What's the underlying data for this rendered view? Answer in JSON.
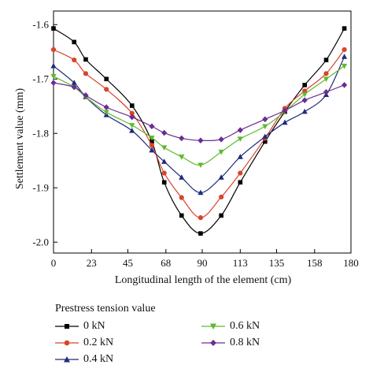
{
  "chart_data": {
    "type": "line",
    "xlabel": "Longitudinal length of the element (cm)",
    "ylabel": "Settlement value (mm)",
    "xlim": [
      0,
      180
    ],
    "ylim": [
      -2.02,
      -1.575
    ],
    "xticks": [
      0,
      23,
      45,
      68,
      90,
      113,
      135,
      158,
      180
    ],
    "xtick_labels": [
      "0",
      "23",
      "45",
      "68",
      "90",
      "113",
      "135",
      "158",
      "180"
    ],
    "yticks": [
      -1.6,
      -1.7,
      -1.8,
      -1.9,
      -2.0
    ],
    "ytick_labels": [
      "-1.6",
      "-1.7",
      "-1.8",
      "-1.9",
      "-2.0"
    ],
    "grid": false,
    "legend_title": "Prestress tension value",
    "legend_position": "bottom",
    "x": [
      0,
      12.5,
      19.5,
      32,
      47.5,
      59.5,
      67,
      77.5,
      89,
      101.5,
      113,
      128,
      140,
      152,
      165,
      176
    ],
    "series": [
      {
        "name": "0 kN",
        "color": "#000000",
        "marker": "square",
        "values": [
          -1.607,
          -1.632,
          -1.664,
          -1.7,
          -1.749,
          -1.815,
          -1.89,
          -1.951,
          -1.984,
          -1.951,
          -1.89,
          -1.815,
          -1.76,
          -1.711,
          -1.665,
          -1.607
        ]
      },
      {
        "name": "0.2 kN",
        "color": "#d6452c",
        "marker": "circle",
        "values": [
          -1.646,
          -1.665,
          -1.69,
          -1.719,
          -1.763,
          -1.822,
          -1.873,
          -1.918,
          -1.955,
          -1.917,
          -1.873,
          -1.809,
          -1.754,
          -1.722,
          -1.69,
          -1.646
        ]
      },
      {
        "name": "0.4 kN",
        "color": "#202b7a",
        "marker": "triangle-up",
        "values": [
          -1.676,
          -1.707,
          -1.733,
          -1.766,
          -1.795,
          -1.831,
          -1.852,
          -1.881,
          -1.909,
          -1.881,
          -1.843,
          -1.806,
          -1.78,
          -1.76,
          -1.729,
          -1.659
        ]
      },
      {
        "name": "0.6 kN",
        "color": "#5cb92e",
        "marker": "triangle-down",
        "values": [
          -1.695,
          -1.715,
          -1.733,
          -1.761,
          -1.785,
          -1.808,
          -1.826,
          -1.843,
          -1.858,
          -1.834,
          -1.81,
          -1.787,
          -1.76,
          -1.728,
          -1.7,
          -1.676
        ]
      },
      {
        "name": "0.8 kN",
        "color": "#6b2d91",
        "marker": "diamond",
        "values": [
          -1.707,
          -1.715,
          -1.73,
          -1.752,
          -1.77,
          -1.787,
          -1.799,
          -1.809,
          -1.813,
          -1.811,
          -1.794,
          -1.774,
          -1.758,
          -1.739,
          -1.724,
          -1.711
        ]
      }
    ]
  }
}
